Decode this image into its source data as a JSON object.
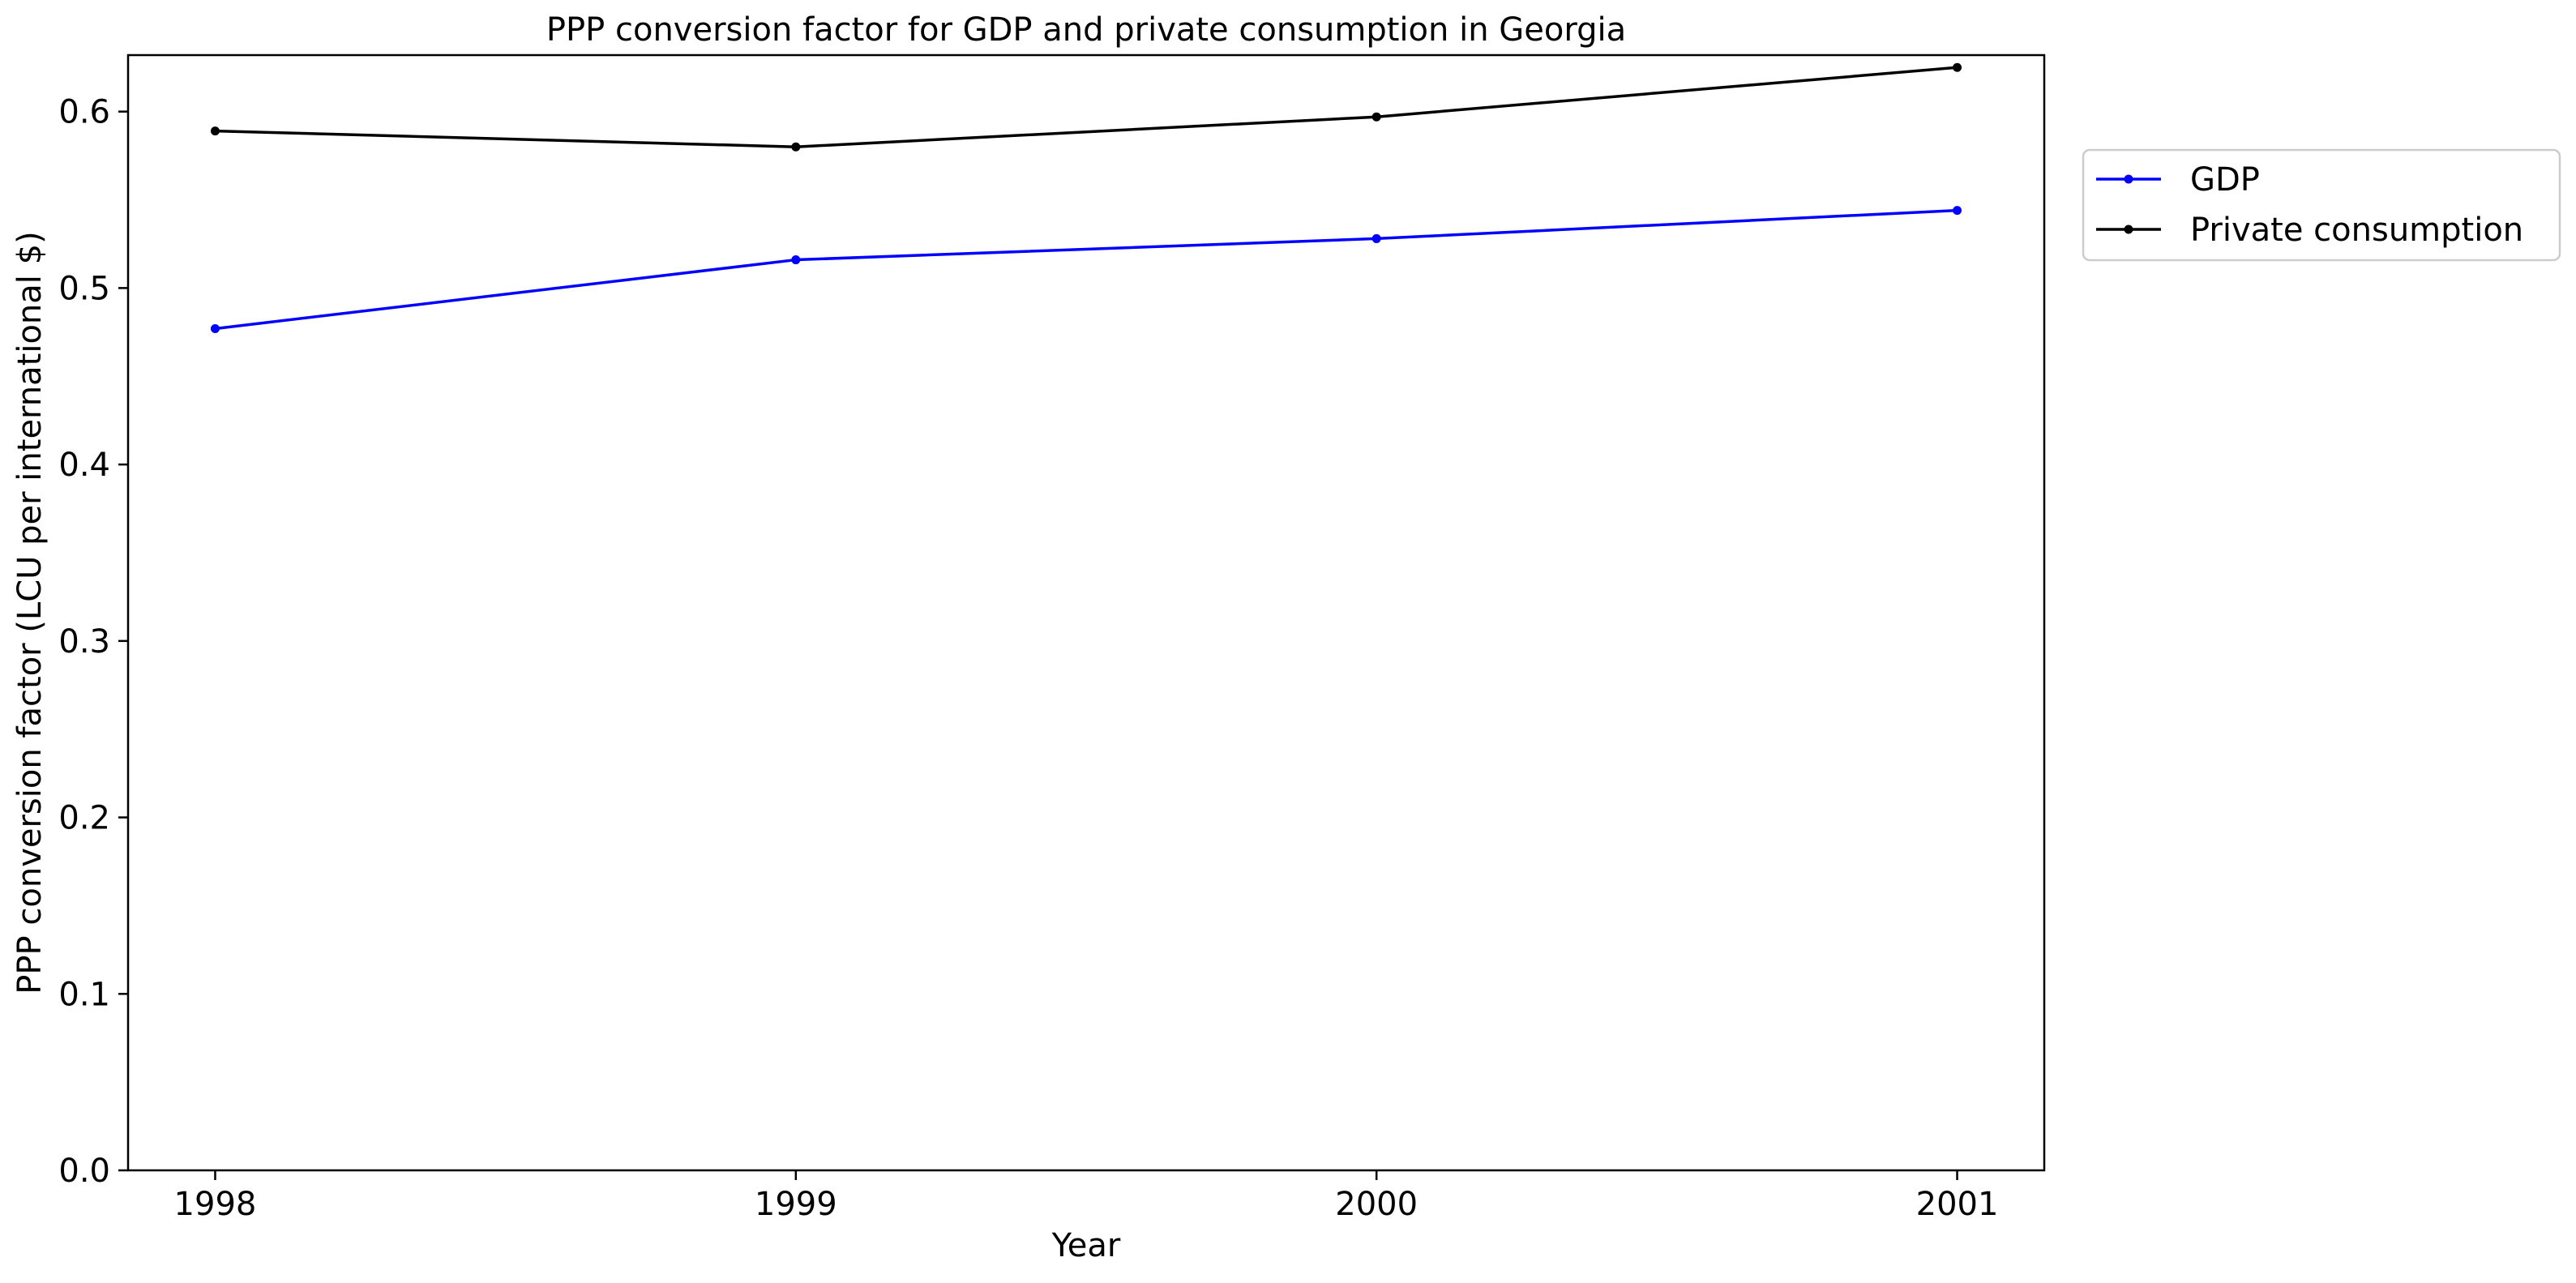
{
  "chart_data": {
    "type": "line",
    "title": "PPP conversion factor for GDP and private consumption in Georgia",
    "xlabel": "Year",
    "ylabel": "PPP conversion factor (LCU per international $)",
    "x": [
      "1998",
      "1999",
      "2000",
      "2001"
    ],
    "xlim": [
      1997.85,
      2001.15
    ],
    "ylim": [
      0.0,
      0.632
    ],
    "yticks": [
      "0.0",
      "0.1",
      "0.2",
      "0.3",
      "0.4",
      "0.5",
      "0.6"
    ],
    "grid": false,
    "legend_position": "outside-right-top",
    "series": [
      {
        "name": "GDP",
        "color": "#0000ff",
        "marker": "dot",
        "values": [
          0.477,
          0.516,
          0.528,
          0.544
        ]
      },
      {
        "name": " Private consumption",
        "color": "#000000",
        "marker": "dot",
        "values": [
          0.589,
          0.58,
          0.597,
          0.625
        ]
      }
    ]
  }
}
